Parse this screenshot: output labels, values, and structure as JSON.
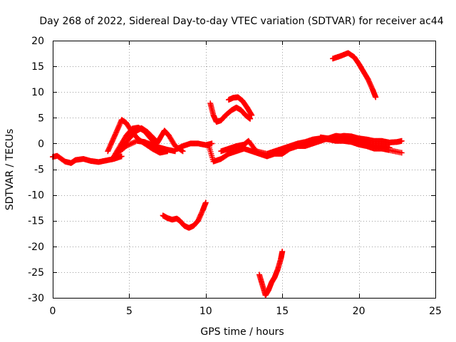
{
  "chart_data": {
    "type": "scatter",
    "title": "Day 268 of 2022, Sidereal Day-to-day VTEC variation (SDTVAR) for receiver ac44",
    "xlabel": "GPS time / hours",
    "ylabel": "SDTVAR / TECUs",
    "xlim": [
      0,
      25
    ],
    "ylim": [
      -30,
      20
    ],
    "xticks": [
      0,
      5,
      10,
      15,
      20,
      25
    ],
    "yticks": [
      -30,
      -25,
      -20,
      -15,
      -10,
      -5,
      0,
      5,
      10,
      15,
      20
    ],
    "grid": true,
    "marker": "+",
    "color": "#ff0000",
    "series": [
      {
        "name": "s1",
        "points": [
          [
            0.0,
            -2.6
          ],
          [
            0.3,
            -2.4
          ],
          [
            0.8,
            -3.5
          ],
          [
            1.2,
            -3.8
          ],
          [
            1.5,
            -3.2
          ],
          [
            2.0,
            -3.0
          ],
          [
            2.5,
            -3.4
          ],
          [
            3.0,
            -3.6
          ],
          [
            3.5,
            -3.3
          ],
          [
            4.0,
            -3.0
          ],
          [
            4.5,
            -2.5
          ]
        ]
      },
      {
        "name": "s2",
        "points": [
          [
            3.6,
            -1.5
          ],
          [
            3.9,
            0.5
          ],
          [
            4.2,
            2.5
          ],
          [
            4.5,
            4.6
          ],
          [
            4.8,
            4.0
          ],
          [
            5.2,
            2.2
          ],
          [
            5.6,
            0.8
          ],
          [
            6.0,
            0.0
          ],
          [
            6.5,
            -1.0
          ],
          [
            7.0,
            -1.8
          ],
          [
            7.5,
            -1.5
          ]
        ]
      },
      {
        "name": "s3",
        "points": [
          [
            4.0,
            -2.5
          ],
          [
            4.4,
            -0.5
          ],
          [
            4.8,
            1.5
          ],
          [
            5.2,
            2.9
          ],
          [
            5.6,
            3.1
          ],
          [
            6.0,
            2.4
          ],
          [
            6.4,
            1.0
          ],
          [
            6.8,
            -0.5
          ],
          [
            7.2,
            -1.5
          ]
        ]
      },
      {
        "name": "s4",
        "points": [
          [
            4.5,
            -1.0
          ],
          [
            5.0,
            1.0
          ],
          [
            5.5,
            2.5
          ],
          [
            5.8,
            3.0
          ],
          [
            6.2,
            2.2
          ],
          [
            6.6,
            1.0
          ],
          [
            6.8,
            0.0
          ],
          [
            7.0,
            1.0
          ],
          [
            7.3,
            2.5
          ],
          [
            7.6,
            1.5
          ],
          [
            8.0,
            -0.5
          ],
          [
            8.5,
            -1.5
          ]
        ]
      },
      {
        "name": "s5",
        "points": [
          [
            4.2,
            -2.0
          ],
          [
            4.8,
            -0.5
          ],
          [
            5.5,
            0.5
          ],
          [
            6.0,
            0.3
          ],
          [
            6.5,
            -0.3
          ],
          [
            7.0,
            -0.8
          ],
          [
            7.5,
            -1.2
          ],
          [
            8.0,
            -1.5
          ]
        ]
      },
      {
        "name": "s6",
        "points": [
          [
            8.0,
            -1.2
          ],
          [
            8.5,
            -0.5
          ],
          [
            9.0,
            0.0
          ],
          [
            9.5,
            0.0
          ],
          [
            10.0,
            -0.3
          ],
          [
            10.4,
            0.0
          ]
        ]
      },
      {
        "name": "s7",
        "points": [
          [
            7.2,
            -14.0
          ],
          [
            7.5,
            -14.5
          ],
          [
            7.8,
            -14.8
          ],
          [
            8.1,
            -14.6
          ],
          [
            8.3,
            -15.0
          ],
          [
            8.6,
            -16.0
          ],
          [
            8.9,
            -16.4
          ],
          [
            9.2,
            -16.0
          ],
          [
            9.5,
            -15.0
          ],
          [
            9.8,
            -13.0
          ],
          [
            10.0,
            -11.5
          ]
        ]
      },
      {
        "name": "s8",
        "points": [
          [
            10.2,
            -0.5
          ],
          [
            10.5,
            -3.5
          ],
          [
            11.0,
            -3.0
          ],
          [
            11.5,
            -2.0
          ],
          [
            12.0,
            -1.5
          ],
          [
            12.5,
            -1.0
          ],
          [
            13.0,
            -1.5
          ],
          [
            13.5,
            -2.0
          ],
          [
            14.0,
            -2.5
          ],
          [
            14.5,
            -2.0
          ],
          [
            15.0,
            -2.0
          ],
          [
            15.5,
            -1.0
          ],
          [
            16.0,
            -0.5
          ],
          [
            16.5,
            -0.5
          ],
          [
            17.0,
            0.0
          ],
          [
            17.5,
            0.5
          ],
          [
            18.0,
            1.0
          ],
          [
            18.5,
            1.5
          ],
          [
            19.0,
            1.3
          ],
          [
            19.5,
            1.0
          ],
          [
            20.0,
            0.5
          ],
          [
            20.5,
            0.0
          ],
          [
            21.0,
            -0.5
          ],
          [
            21.5,
            -0.5
          ],
          [
            22.0,
            -0.8
          ]
        ]
      },
      {
        "name": "s9",
        "points": [
          [
            11.0,
            -1.5
          ],
          [
            11.5,
            -1.0
          ],
          [
            12.0,
            -0.5
          ],
          [
            12.5,
            -0.2
          ],
          [
            12.8,
            0.5
          ],
          [
            13.3,
            -1.5
          ],
          [
            14.0,
            -2.0
          ],
          [
            14.5,
            -1.5
          ],
          [
            15.0,
            -1.0
          ],
          [
            15.5,
            -0.5
          ],
          [
            16.0,
            0.0
          ],
          [
            16.5,
            0.3
          ],
          [
            17.0,
            0.8
          ],
          [
            17.5,
            1.0
          ],
          [
            18.0,
            0.8
          ],
          [
            18.5,
            0.5
          ],
          [
            19.0,
            0.5
          ],
          [
            19.5,
            0.3
          ],
          [
            20.0,
            -0.2
          ],
          [
            20.5,
            -0.5
          ],
          [
            21.0,
            -1.0
          ],
          [
            21.5,
            -1.0
          ],
          [
            22.0,
            -1.3
          ],
          [
            22.8,
            -1.8
          ]
        ]
      },
      {
        "name": "s10",
        "points": [
          [
            17.5,
            1.2
          ],
          [
            18.0,
            1.0
          ],
          [
            18.5,
            1.2
          ],
          [
            19.0,
            1.5
          ],
          [
            19.5,
            1.4
          ],
          [
            20.0,
            1.0
          ],
          [
            20.5,
            0.8
          ],
          [
            21.0,
            0.5
          ],
          [
            21.5,
            0.5
          ],
          [
            22.0,
            0.2
          ],
          [
            22.5,
            0.3
          ],
          [
            22.8,
            0.5
          ]
        ]
      },
      {
        "name": "s11",
        "points": [
          [
            10.3,
            7.8
          ],
          [
            10.5,
            5.5
          ],
          [
            10.7,
            4.2
          ],
          [
            11.0,
            4.5
          ],
          [
            11.3,
            5.5
          ],
          [
            11.7,
            6.5
          ],
          [
            12.0,
            7.0
          ],
          [
            12.3,
            6.5
          ],
          [
            12.6,
            5.5
          ],
          [
            12.9,
            4.8
          ]
        ]
      },
      {
        "name": "s12",
        "points": [
          [
            11.5,
            8.5
          ],
          [
            11.8,
            8.9
          ],
          [
            12.1,
            9.0
          ],
          [
            12.4,
            8.3
          ],
          [
            12.7,
            7.0
          ],
          [
            13.0,
            5.5
          ]
        ]
      },
      {
        "name": "s13",
        "points": [
          [
            13.5,
            -25.5
          ],
          [
            13.7,
            -27.5
          ],
          [
            13.9,
            -29.5
          ],
          [
            14.1,
            -28.5
          ],
          [
            14.3,
            -27.0
          ],
          [
            14.5,
            -26.0
          ],
          [
            14.7,
            -24.5
          ],
          [
            14.9,
            -22.5
          ],
          [
            15.0,
            -21.0
          ]
        ]
      },
      {
        "name": "s14",
        "points": [
          [
            18.3,
            16.5
          ],
          [
            18.8,
            17.0
          ],
          [
            19.3,
            17.6
          ],
          [
            19.7,
            16.8
          ],
          [
            20.0,
            15.5
          ],
          [
            20.3,
            14.0
          ],
          [
            20.6,
            12.5
          ],
          [
            20.9,
            10.5
          ],
          [
            21.1,
            9.0
          ]
        ]
      }
    ]
  }
}
